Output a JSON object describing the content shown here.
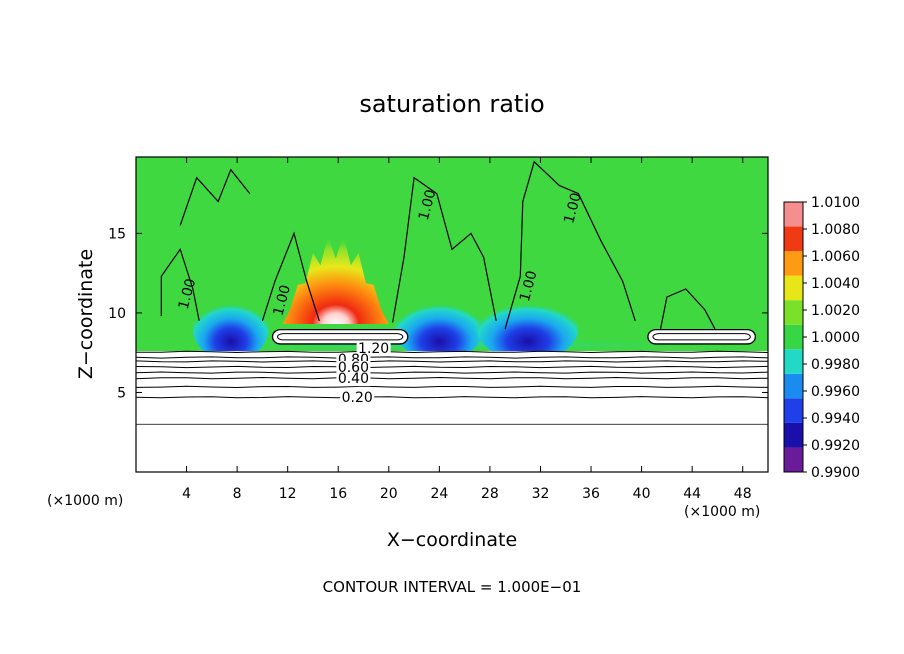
{
  "chart_data": {
    "type": "heatmap",
    "title": "saturation ratio",
    "xlabel": "X−coordinate",
    "ylabel": "Z−coordinate",
    "x_unit_left": "(×1000 m)",
    "x_unit_right": "(×1000 m)",
    "xlim": [
      0,
      50
    ],
    "ylim": [
      0,
      19.8
    ],
    "x_ticks": [
      4,
      8,
      12,
      16,
      20,
      24,
      28,
      32,
      36,
      40,
      44,
      48
    ],
    "x_tick_labels": [
      "4",
      "8",
      "12",
      "16",
      "20",
      "24",
      "28",
      "32",
      "36",
      "40",
      "44",
      "48"
    ],
    "y_ticks": [
      5,
      10,
      15
    ],
    "y_tick_labels": [
      "5",
      "10",
      "15"
    ],
    "colorbar": {
      "levels": [
        0.99,
        0.992,
        0.994,
        0.996,
        0.998,
        1.0,
        1.002,
        1.004,
        1.006,
        1.008,
        1.01
      ],
      "labels": [
        "1.0100",
        "1.0080",
        "1.0060",
        "1.0040",
        "1.0020",
        "1.0000",
        "0.9980",
        "0.9960",
        "0.9940",
        "0.9920",
        "0.9900"
      ],
      "colors": [
        "#6a1b9a",
        "#1a0fa8",
        "#1f3fe8",
        "#1a8cf0",
        "#22d9c8",
        "#37d645",
        "#7be02a",
        "#e6e619",
        "#ff9a14",
        "#f03a14",
        "#f58f8f"
      ]
    },
    "contour_interval_text": "CONTOUR INTERVAL = 1.000E−01",
    "contour_labels": [
      {
        "text": "1.20",
        "x": 18.8,
        "y": 7.8
      },
      {
        "text": "0.80",
        "x": 17.2,
        "y": 7.1
      },
      {
        "text": "0.60",
        "x": 17.2,
        "y": 6.6
      },
      {
        "text": "0.40",
        "x": 17.2,
        "y": 5.9
      },
      {
        "text": "0.20",
        "x": 17.5,
        "y": 4.7
      },
      {
        "text": "1.00",
        "x": 4.0,
        "y": 11.2
      },
      {
        "text": "1.00",
        "x": 11.5,
        "y": 10.8
      },
      {
        "text": "1.00",
        "x": 23.0,
        "y": 16.8
      },
      {
        "text": "1.00",
        "x": 31.0,
        "y": 11.7
      },
      {
        "text": "1.00",
        "x": 34.5,
        "y": 16.6
      }
    ],
    "contour_levels_below": [
      {
        "level": 0.2,
        "z": 4.7
      },
      {
        "level": 0.3,
        "z": 5.35
      },
      {
        "level": 0.4,
        "z": 5.9
      },
      {
        "level": 0.5,
        "z": 6.25
      },
      {
        "level": 0.6,
        "z": 6.6
      },
      {
        "level": 0.7,
        "z": 6.95
      },
      {
        "level": 0.8,
        "z": 7.2
      },
      {
        "level": 0.9,
        "z": 7.55
      }
    ],
    "low_contour_z": 3.0,
    "features": [
      {
        "kind": "supersaturated-core",
        "x_center": 15.8,
        "z_base": 9.3,
        "z_top": 15.0,
        "half_width": 4.2
      },
      {
        "kind": "subsaturated-zone",
        "x_center": 7.5,
        "z_center": 9.0,
        "half_width": 3.0
      },
      {
        "kind": "subsaturated-zone",
        "x_center": 24.0,
        "z_center": 9.0,
        "half_width": 3.5
      },
      {
        "kind": "subsaturated-zone",
        "x_center": 31.0,
        "z_center": 9.0,
        "half_width": 4.0
      },
      {
        "kind": "cloud-outline",
        "x_start": 10.8,
        "x_end": 21.5,
        "z": 8.5
      },
      {
        "kind": "cloud-outline",
        "x_start": 40.5,
        "x_end": 49.0,
        "z": 8.5
      }
    ]
  }
}
